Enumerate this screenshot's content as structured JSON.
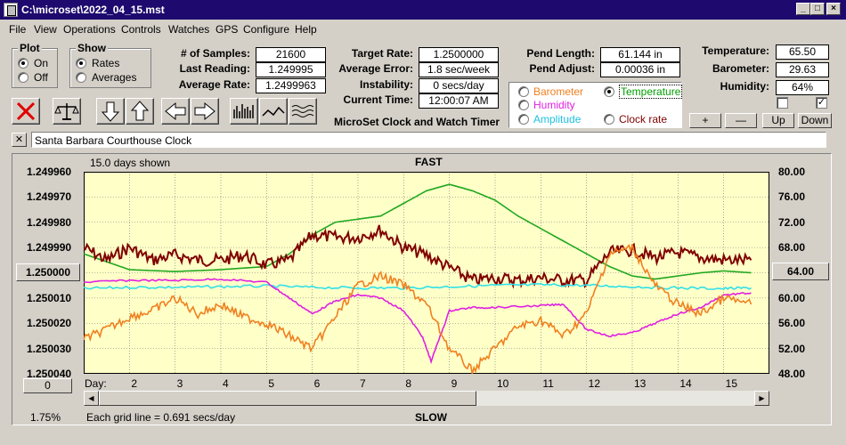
{
  "window": {
    "title": "C:\\microset\\2022_04_15.mst"
  },
  "menu": [
    "File",
    "View",
    "Operations",
    "Controls",
    "Watches",
    "GPS",
    "Configure",
    "Help"
  ],
  "plot_group": {
    "title": "Plot",
    "options": [
      "On",
      "Off"
    ],
    "selected": "On"
  },
  "show_group": {
    "title": "Show",
    "options": [
      "Rates",
      "Averages"
    ],
    "selected": "Rates"
  },
  "stats": {
    "samples_label": "# of Samples:",
    "samples_value": "21600",
    "last_reading_label": "Last Reading:",
    "last_reading_value": "1.249995",
    "average_rate_label": "Average Rate:",
    "average_rate_value": "1.2499963",
    "target_rate_label": "Target Rate:",
    "target_rate_value": "1.2500000",
    "average_error_label": "Average Error:",
    "average_error_value": "1.8 sec/week",
    "instability_label": "Instability:",
    "instability_value": "0 secs/day",
    "current_time_label": "Current Time:",
    "current_time_value": "12:00:07 AM",
    "pend_length_label": "Pend Length:",
    "pend_length_value": "61.144 in",
    "pend_adjust_label": "Pend Adjust:",
    "pend_adjust_value": "0.00036 in",
    "temperature_label": "Temperature:",
    "temperature_value": "65.50",
    "barometer_label": "Barometer:",
    "barometer_value": "29.63",
    "humidity_label": "Humidity:",
    "humidity_value": "64%"
  },
  "app_caption": "MicroSet Clock and Watch Timer",
  "sensor_select": {
    "options": [
      {
        "label": "Barometer",
        "color": "#f08020",
        "selected": false
      },
      {
        "label": "Temperature",
        "color": "#00a000",
        "selected": true
      },
      {
        "label": "Humidity",
        "color": "#e020e0",
        "selected": false
      },
      {
        "label": "Clock rate",
        "color": "#800000",
        "selected": false
      },
      {
        "label": "Amplitude",
        "color": "#20c0e0",
        "selected": false
      }
    ]
  },
  "scale_buttons": [
    "+",
    "—",
    "Up",
    "Down"
  ],
  "clock_name": "Santa Barbara Courthouse Clock",
  "chart_header": {
    "days_shown": "15.0 days shown",
    "top_label": "FAST",
    "bottom_label": "SLOW"
  },
  "left_axis_current": "1.250000",
  "right_axis_current": "64.00",
  "left_bottom_button": "0",
  "percent_label": "1.75%",
  "grid_note": "Each grid line = 0.691 secs/day",
  "day_label": "Day:",
  "colors": {
    "plot_bg": "#ffffc8",
    "barometer": "#f08020",
    "temperature": "#20a820",
    "humidity": "#e020e0",
    "clock_rate": "#800000",
    "amplitude": "#30e0e8"
  },
  "chart_data": {
    "type": "line",
    "x_label": "Day:",
    "x_ticks": [
      2,
      3,
      4,
      5,
      6,
      7,
      8,
      9,
      10,
      11,
      12,
      13,
      14,
      15
    ],
    "x_range": [
      1,
      16
    ],
    "left_axis": {
      "ticks": [
        "1.249960",
        "1.249970",
        "1.249980",
        "1.249990",
        "1.250000",
        "1.250010",
        "1.250020",
        "1.250030",
        "1.250040"
      ],
      "range": [
        1.24996,
        1.25004
      ],
      "inverted": true
    },
    "right_axis": {
      "ticks": [
        "80.00",
        "76.00",
        "72.00",
        "68.00",
        "64.00",
        "60.00",
        "56.00",
        "52.00",
        "48.00"
      ],
      "range": [
        48,
        80
      ]
    },
    "series": [
      {
        "name": "Temperature",
        "axis": "right",
        "color": "#20a820",
        "x": [
          1,
          2,
          3,
          4,
          5,
          5.5,
          6,
          6.5,
          7,
          7.5,
          8,
          8.5,
          9,
          9.5,
          10,
          10.5,
          11,
          11.5,
          12,
          12.5,
          13,
          13.5,
          14,
          14.5,
          15,
          15.6
        ],
        "y": [
          67,
          64.5,
          64.2,
          64.5,
          65,
          67,
          70,
          72,
          72.5,
          73,
          75,
          77,
          78,
          77,
          75.5,
          73,
          71,
          69,
          67,
          65,
          63.5,
          63,
          63.5,
          64,
          64.3,
          64
        ]
      },
      {
        "name": "Clock rate",
        "axis": "left",
        "color": "#800000",
        "x": [
          1,
          1.5,
          2,
          2.5,
          3,
          3.5,
          4,
          4.5,
          5,
          5.5,
          6,
          6.5,
          7,
          7.5,
          8,
          8.5,
          9,
          9.5,
          10,
          10.5,
          11,
          11.5,
          12,
          12.5,
          13,
          13.5,
          14,
          14.5,
          15,
          15.6
        ],
        "y": [
          1.24999,
          1.249995,
          1.24999,
          1.249995,
          1.249993,
          1.249995,
          1.249995,
          1.249993,
          1.249997,
          1.249995,
          1.249985,
          1.249986,
          1.249986,
          1.249983,
          1.24999,
          1.249993,
          1.249998,
          1.250003,
          1.250002,
          1.250003,
          1.250002,
          1.250003,
          1.250003,
          1.249992,
          1.249991,
          1.249994,
          1.249992,
          1.249994,
          1.249995,
          1.249995
        ]
      },
      {
        "name": "Amplitude",
        "axis": "right",
        "color": "#30e0e8",
        "x": [
          1,
          2,
          3,
          4,
          5,
          6,
          7,
          8,
          9,
          10,
          11,
          12,
          13,
          14,
          15,
          15.6
        ],
        "y": [
          61.5,
          61.7,
          61.7,
          61.8,
          61.9,
          61.7,
          61.6,
          61.6,
          61.8,
          62,
          62.1,
          62,
          61.8,
          61.6,
          61.5,
          61.6
        ]
      },
      {
        "name": "Humidity",
        "axis": "right",
        "color": "#e020e0",
        "x": [
          1,
          2,
          3,
          4,
          5,
          5.5,
          6,
          6.5,
          7,
          7.5,
          8,
          8.4,
          8.6,
          9,
          9.5,
          10,
          11,
          11.5,
          12,
          12.5,
          13,
          13.5,
          14,
          14.5,
          15,
          15.6
        ],
        "y": [
          62.5,
          62.8,
          62.8,
          63,
          62.5,
          60,
          57.5,
          59.5,
          60.5,
          60,
          58,
          54,
          50,
          58,
          58.5,
          58.5,
          58.8,
          59,
          55,
          54,
          54.5,
          56,
          57.5,
          58.5,
          60.5,
          60.8
        ]
      },
      {
        "name": "Barometer",
        "axis": "right",
        "color": "#f08020",
        "x": [
          1,
          1.5,
          2,
          2.5,
          3,
          3.5,
          4,
          4.5,
          5,
          5.5,
          6,
          6.5,
          7,
          7.5,
          8,
          8.5,
          9,
          9.5,
          10,
          10.5,
          11,
          11.5,
          12,
          12.5,
          13,
          13.5,
          14,
          14.5,
          15,
          15.6
        ],
        "y": [
          53.5,
          55,
          57,
          58,
          60,
          57.5,
          59,
          57,
          56,
          54,
          52,
          57,
          62,
          63.5,
          62,
          59,
          52,
          48.5,
          52,
          55.5,
          56.5,
          54,
          57.5,
          67,
          68,
          62,
          59,
          57.5,
          60,
          59
        ]
      }
    ]
  }
}
